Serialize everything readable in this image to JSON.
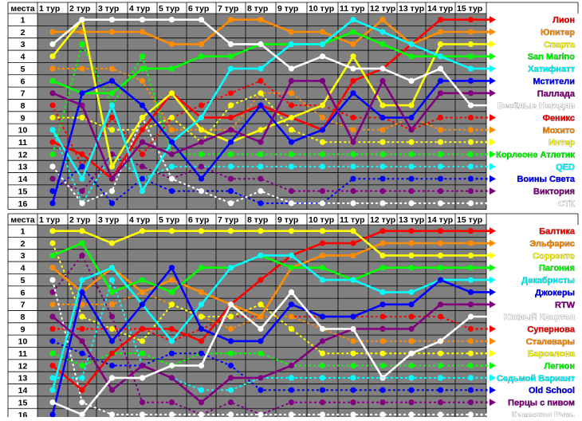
{
  "header_label": "места",
  "rounds": [
    "1 тур",
    "2 тур",
    "3 тур",
    "4 тур",
    "5 тур",
    "6 тур",
    "7 тур",
    "8 тур",
    "9 тур",
    "10 тур",
    "11 тур",
    "12 тур",
    "13 тур",
    "14 тур",
    "15 тур"
  ],
  "places": [
    "1",
    "2",
    "3",
    "4",
    "5",
    "6",
    "7",
    "8",
    "9",
    "10",
    "11",
    "12",
    "13",
    "14",
    "15",
    "16"
  ],
  "chart_data": [
    {
      "type": "line",
      "xlabel": "",
      "ylabel": "места",
      "categories": [
        "1 тур",
        "2 тур",
        "3 тур",
        "4 тур",
        "5 тур",
        "6 тур",
        "7 тур",
        "8 тур",
        "9 тур",
        "10 тур",
        "11 тур",
        "12 тур",
        "13 тур",
        "14 тур",
        "15 тур"
      ],
      "ylim": [
        1,
        16
      ],
      "y_inverted": true,
      "series": [
        {
          "name": "Лион",
          "color": "#ff0000",
          "dashed": false,
          "values": [
            11,
            12,
            14,
            10,
            7,
            9,
            9,
            8,
            9,
            10,
            6,
            5,
            3,
            1,
            1
          ]
        },
        {
          "name": "Юпитер",
          "color": "#ff8c00",
          "dashed": false,
          "values": [
            2,
            2,
            2,
            2,
            3,
            3,
            1,
            1,
            2,
            2,
            3,
            1,
            3,
            2,
            2
          ]
        },
        {
          "name": "Спарта",
          "color": "#ffff00",
          "dashed": false,
          "values": [
            4,
            1,
            13,
            9,
            7,
            10,
            11,
            10,
            9,
            8,
            4,
            8,
            8,
            3,
            3
          ]
        },
        {
          "name": "San Marino",
          "color": "#00ff00",
          "dashed": false,
          "values": [
            6,
            7,
            7,
            5,
            5,
            4,
            4,
            3,
            3,
            3,
            2,
            3,
            4,
            4,
            4
          ]
        },
        {
          "name": "Хатифнатт",
          "color": "#00ffff",
          "dashed": false,
          "values": [
            10,
            14,
            8,
            15,
            11,
            9,
            5,
            5,
            3,
            3,
            1,
            2,
            3,
            4,
            5
          ]
        },
        {
          "name": "Мстители",
          "color": "#0000ff",
          "dashed": false,
          "values": [
            16,
            7,
            6,
            8,
            11,
            14,
            11,
            8,
            11,
            10,
            7,
            9,
            9,
            6,
            6
          ]
        },
        {
          "name": "Паллада",
          "color": "#800080",
          "dashed": false,
          "values": [
            7,
            8,
            14,
            11,
            12,
            11,
            10,
            11,
            6,
            6,
            11,
            6,
            10,
            7,
            7
          ]
        },
        {
          "name": "Весёлые Негодяи",
          "color": "#ffffff",
          "dashed": false,
          "values": [
            3,
            1,
            1,
            1,
            1,
            1,
            3,
            3,
            5,
            4,
            5,
            5,
            6,
            5,
            8
          ]
        },
        {
          "name": "Феникс",
          "color": "#ff0000",
          "dashed": true,
          "values": [
            8,
            13,
            9,
            12,
            9,
            8,
            7,
            6,
            8,
            8,
            9,
            9,
            10,
            9,
            9
          ]
        },
        {
          "name": "Мохито",
          "color": "#ff8c00",
          "dashed": true,
          "values": [
            5,
            5,
            5,
            6,
            10,
            10,
            10,
            7,
            7,
            9,
            10,
            10,
            9,
            10,
            10
          ]
        },
        {
          "name": "Интер",
          "color": "#ffff00",
          "dashed": true,
          "values": [
            9,
            9,
            10,
            10,
            9,
            11,
            8,
            7,
            10,
            11,
            11,
            11,
            11,
            11,
            11
          ]
        },
        {
          "name": "Корлеоне Атлетик",
          "color": "#00ff00",
          "dashed": true,
          "values": [
            12,
            3,
            8,
            4,
            12,
            12,
            12,
            12,
            12,
            12,
            12,
            12,
            12,
            12,
            12
          ]
        },
        {
          "name": "QED",
          "color": "#00ffff",
          "dashed": true,
          "values": [
            10,
            16,
            12,
            14,
            13,
            13,
            13,
            13,
            13,
            13,
            13,
            13,
            13,
            13,
            13
          ]
        },
        {
          "name": "Воины Света",
          "color": "#0000ff",
          "dashed": true,
          "values": [
            15,
            13,
            16,
            14,
            15,
            15,
            15,
            16,
            16,
            16,
            14,
            14,
            14,
            14,
            14
          ]
        },
        {
          "name": "Виктория",
          "color": "#800080",
          "dashed": true,
          "values": [
            14,
            15,
            12,
            13,
            14,
            13,
            14,
            14,
            15,
            15,
            15,
            15,
            15,
            15,
            15
          ]
        },
        {
          "name": "СТК",
          "color": "#ffffff",
          "dashed": true,
          "values": [
            13,
            16,
            15,
            9,
            14,
            15,
            16,
            15,
            16,
            16,
            16,
            16,
            16,
            16,
            16
          ]
        }
      ]
    },
    {
      "type": "line",
      "xlabel": "",
      "ylabel": "места",
      "categories": [
        "1 тур",
        "2 тур",
        "3 тур",
        "4 тур",
        "5 тур",
        "6 тур",
        "7 тур",
        "8 тур",
        "9 тур",
        "10 тур",
        "11 тур",
        "12 тур",
        "13 тур",
        "14 тур",
        "15 тур"
      ],
      "ylim": [
        1,
        16
      ],
      "y_inverted": true,
      "series": [
        {
          "name": "Балтика",
          "color": "#ff0000",
          "dashed": false,
          "values": [
            12,
            14,
            11,
            9,
            9,
            10,
            7,
            5,
            3,
            2,
            2,
            1,
            1,
            1,
            1
          ]
        },
        {
          "name": "Эльфарис",
          "color": "#ff8c00",
          "dashed": false,
          "values": [
            4,
            6,
            4,
            6,
            5,
            6,
            7,
            8,
            4,
            3,
            3,
            2,
            2,
            2,
            2
          ]
        },
        {
          "name": "Сорренто",
          "color": "#ffff00",
          "dashed": false,
          "values": [
            1,
            1,
            2,
            1,
            1,
            1,
            1,
            1,
            1,
            1,
            1,
            3,
            3,
            3,
            3
          ]
        },
        {
          "name": "Пагония",
          "color": "#00ff00",
          "dashed": false,
          "values": [
            3,
            2,
            6,
            5,
            6,
            4,
            4,
            3,
            4,
            4,
            5,
            4,
            4,
            4,
            4
          ]
        },
        {
          "name": "Декабристы",
          "color": "#00ffff",
          "dashed": false,
          "values": [
            14,
            5,
            4,
            7,
            10,
            7,
            4,
            3,
            3,
            5,
            5,
            6,
            6,
            5,
            5
          ]
        },
        {
          "name": "Джокеры",
          "color": "#0000ff",
          "dashed": false,
          "values": [
            16,
            6,
            10,
            7,
            4,
            9,
            10,
            10,
            7,
            8,
            8,
            7,
            7,
            5,
            6
          ]
        },
        {
          "name": "RTW",
          "color": "#800080",
          "dashed": false,
          "values": [
            8,
            10,
            14,
            12,
            13,
            15,
            13,
            13,
            12,
            10,
            9,
            9,
            9,
            7,
            7
          ]
        },
        {
          "name": "Южный Квартал",
          "color": "#ffffff",
          "dashed": false,
          "values": [
            15,
            16,
            13,
            13,
            12,
            12,
            7,
            9,
            6,
            9,
            9,
            13,
            11,
            10,
            8
          ]
        },
        {
          "name": "Супернова",
          "color": "#ff0000",
          "dashed": true,
          "values": [
            9,
            9,
            9,
            9,
            10,
            9,
            8,
            8,
            8,
            8,
            8,
            8,
            8,
            8,
            9
          ]
        },
        {
          "name": "Сталевары",
          "color": "#ff8c00",
          "dashed": true,
          "values": [
            7,
            7,
            7,
            6,
            7,
            8,
            9,
            8,
            8,
            9,
            10,
            10,
            10,
            10,
            10
          ]
        },
        {
          "name": "Барселона",
          "color": "#ffff00",
          "dashed": true,
          "values": [
            2,
            8,
            9,
            10,
            7,
            8,
            8,
            7,
            9,
            11,
            11,
            11,
            11,
            11,
            11
          ]
        },
        {
          "name": "Легион",
          "color": "#00ff00",
          "dashed": true,
          "values": [
            11,
            12,
            11,
            11,
            12,
            11,
            11,
            11,
            12,
            12,
            12,
            12,
            12,
            12,
            12
          ]
        },
        {
          "name": "Седьмой Вариант",
          "color": "#00ffff",
          "dashed": true,
          "values": [
            13,
            13,
            5,
            12,
            13,
            14,
            14,
            13,
            13,
            13,
            13,
            13,
            13,
            13,
            13
          ]
        },
        {
          "name": "Old School",
          "color": "#0000ff",
          "dashed": true,
          "values": [
            10,
            11,
            12,
            12,
            11,
            11,
            12,
            14,
            14,
            14,
            14,
            14,
            14,
            14,
            14
          ]
        },
        {
          "name": "Перцы с пивом",
          "color": "#800080",
          "dashed": true,
          "values": [
            6,
            3,
            8,
            15,
            15,
            16,
            15,
            16,
            15,
            15,
            15,
            15,
            15,
            15,
            15
          ]
        },
        {
          "name": "Киевская Русь",
          "color": "#ffffff",
          "dashed": true,
          "values": [
            5,
            15,
            16,
            16,
            16,
            16,
            16,
            16,
            16,
            16,
            16,
            16,
            16,
            16,
            16
          ]
        }
      ]
    }
  ]
}
